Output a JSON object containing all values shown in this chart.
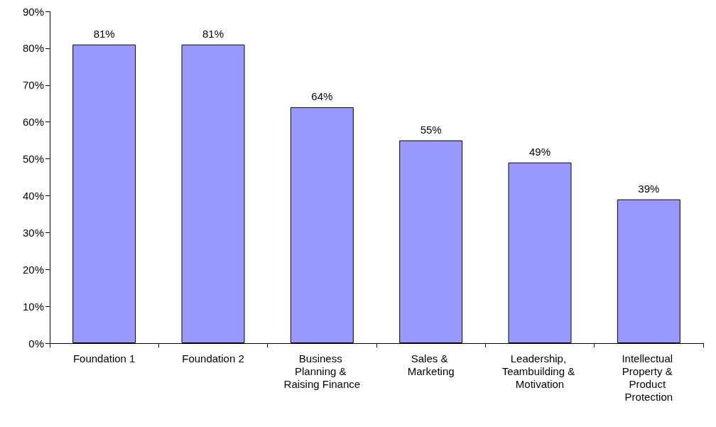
{
  "chart_data": {
    "type": "bar",
    "categories": [
      "Foundation 1",
      "Foundation 2",
      "Business Planning & Raising Finance",
      "Sales & Marketing",
      "Leadership, Teambuilding & Motivation",
      "Intellectual Property & Product Protection"
    ],
    "values": [
      81,
      81,
      64,
      55,
      49,
      39
    ],
    "value_labels": [
      "81%",
      "81%",
      "64%",
      "55%",
      "49%",
      "39%"
    ],
    "color": "#9999ff",
    "ylim": [
      0,
      90
    ],
    "yticks": [
      {
        "value": 0,
        "label": "0%"
      },
      {
        "value": 10,
        "label": "10%"
      },
      {
        "value": 20,
        "label": "20%"
      },
      {
        "value": 30,
        "label": "30%"
      },
      {
        "value": 40,
        "label": "40%"
      },
      {
        "value": 50,
        "label": "50%"
      },
      {
        "value": 60,
        "label": "60%"
      },
      {
        "value": 70,
        "label": "70%"
      },
      {
        "value": 80,
        "label": "80%"
      },
      {
        "value": 90,
        "label": "90%"
      }
    ]
  }
}
